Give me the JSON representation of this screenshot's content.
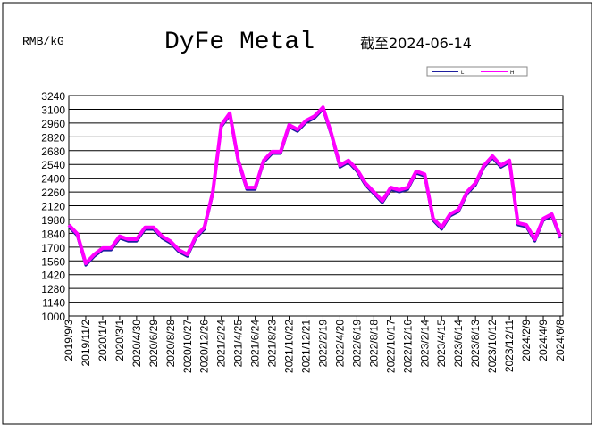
{
  "chart_data": {
    "type": "line",
    "title": "DyFe Metal",
    "subtitle": "截至2024-06-14",
    "y_label": "RMB/kG",
    "categories": [
      "2019/9/3",
      null,
      "2019/11/2",
      null,
      "2020/1/1",
      null,
      "2020/3/1",
      null,
      "2020/4/30",
      null,
      "2020/6/29",
      null,
      "2020/8/28",
      null,
      "2020/10/27",
      null,
      "2020/12/26",
      null,
      "2021/2/24",
      null,
      "2021/4/25",
      null,
      "2021/6/24",
      null,
      "2021/8/23",
      null,
      "2021/10/22",
      null,
      "2021/12/21",
      null,
      "2022/2/19",
      null,
      "2022/4/20",
      null,
      "2022/6/19",
      null,
      "2022/8/18",
      null,
      "2022/10/17",
      null,
      "2022/12/16",
      null,
      "2023/2/14",
      null,
      "2023/4/15",
      null,
      "2023/6/14",
      null,
      "2023/8/13",
      null,
      "2023/10/12",
      null,
      "2023/12/11",
      null,
      "2024/2/9",
      null,
      "2024/4/9",
      null,
      "2024/6/8"
    ],
    "series": [
      {
        "name": "L",
        "color": "#1f1f9f",
        "values": [
          1905,
          1815,
          1515,
          1605,
          1670,
          1670,
          1790,
          1760,
          1760,
          1880,
          1880,
          1790,
          1740,
          1650,
          1605,
          1790,
          1880,
          2240,
          2920,
          3040,
          2560,
          2285,
          2285,
          2560,
          2650,
          2650,
          2920,
          2875,
          2965,
          3010,
          3100,
          2830,
          2510,
          2560,
          2470,
          2330,
          2240,
          2150,
          2285,
          2260,
          2285,
          2450,
          2420,
          1970,
          1880,
          2015,
          2060,
          2240,
          2330,
          2510,
          2605,
          2510,
          2560,
          1925,
          1905,
          1760,
          1970,
          2015,
          1790
        ]
      },
      {
        "name": "H",
        "color": "#ff00ff",
        "values": [
          1925,
          1835,
          1535,
          1625,
          1690,
          1690,
          1810,
          1780,
          1780,
          1900,
          1900,
          1810,
          1760,
          1670,
          1625,
          1810,
          1900,
          2260,
          2940,
          3060,
          2580,
          2305,
          2305,
          2580,
          2670,
          2670,
          2940,
          2895,
          2985,
          3030,
          3120,
          2850,
          2530,
          2580,
          2490,
          2350,
          2260,
          2170,
          2305,
          2280,
          2305,
          2470,
          2440,
          1990,
          1900,
          2035,
          2080,
          2260,
          2350,
          2530,
          2625,
          2530,
          2580,
          1945,
          1925,
          1780,
          1990,
          2035,
          1810
        ]
      }
    ],
    "ylim": [
      1000,
      3240
    ],
    "yticks": [
      1000,
      1140,
      1280,
      1420,
      1560,
      1700,
      1840,
      1980,
      2120,
      2260,
      2400,
      2540,
      2680,
      2820,
      2960,
      3100,
      3240
    ],
    "grid": true
  }
}
